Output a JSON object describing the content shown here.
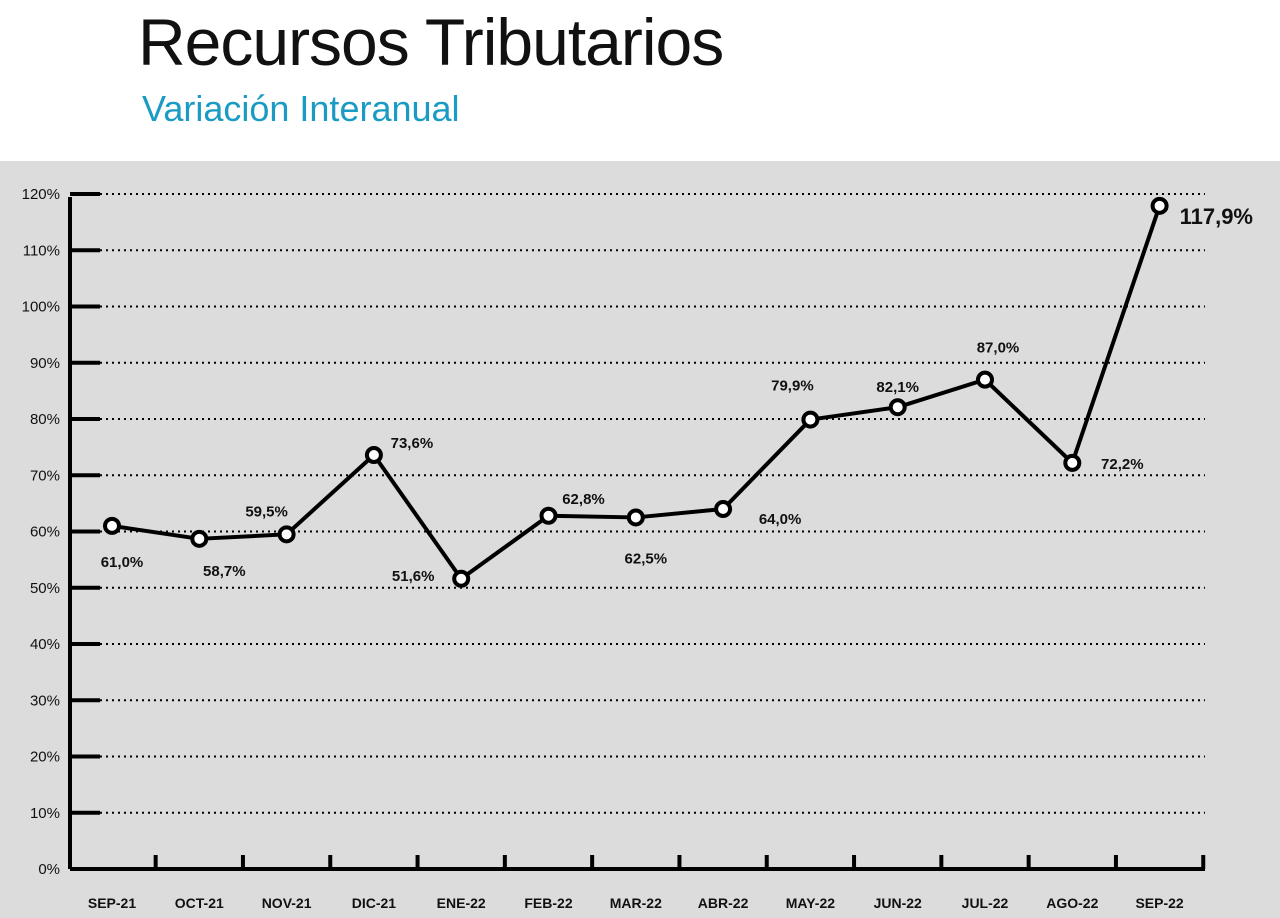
{
  "header": {
    "title": "Recursos Tributarios",
    "subtitle": "Variación Interanual"
  },
  "colors": {
    "panel": "#dcdcdc",
    "line": "#000000",
    "subtitle": "#1a9bc4",
    "marker_fill": "#ffffff"
  },
  "chart_data": {
    "type": "line",
    "title": "Recursos Tributarios",
    "subtitle": "Variación Interanual",
    "xlabel": "",
    "ylabel": "",
    "ylim": [
      0,
      120
    ],
    "yticks": [
      0,
      10,
      20,
      30,
      40,
      50,
      60,
      70,
      80,
      90,
      100,
      110,
      120
    ],
    "ytick_labels": [
      "0%",
      "10%",
      "20%",
      "30%",
      "40%",
      "50%",
      "60%",
      "70%",
      "80%",
      "90%",
      "100%",
      "110%",
      "120%"
    ],
    "grid": "horizontal dotted",
    "categories": [
      "SEP-21",
      "OCT-21",
      "NOV-21",
      "DIC-21",
      "ENE-22",
      "FEB-22",
      "MAR-22",
      "ABR-22",
      "MAY-22",
      "JUN-22",
      "JUL-22",
      "AGO-22",
      "SEP-22"
    ],
    "series": [
      {
        "values": [
          61.0,
          58.7,
          59.5,
          73.6,
          51.6,
          62.8,
          62.5,
          64.0,
          79.9,
          82.1,
          87.0,
          72.2,
          117.9
        ],
        "labels": [
          "61,0%",
          "58,7%",
          "59,5%",
          "73,6%",
          "51,6%",
          "62,8%",
          "62,5%",
          "64,0%",
          "79,9%",
          "82,1%",
          "87,0%",
          "72,2%",
          "117,9%"
        ]
      }
    ]
  }
}
